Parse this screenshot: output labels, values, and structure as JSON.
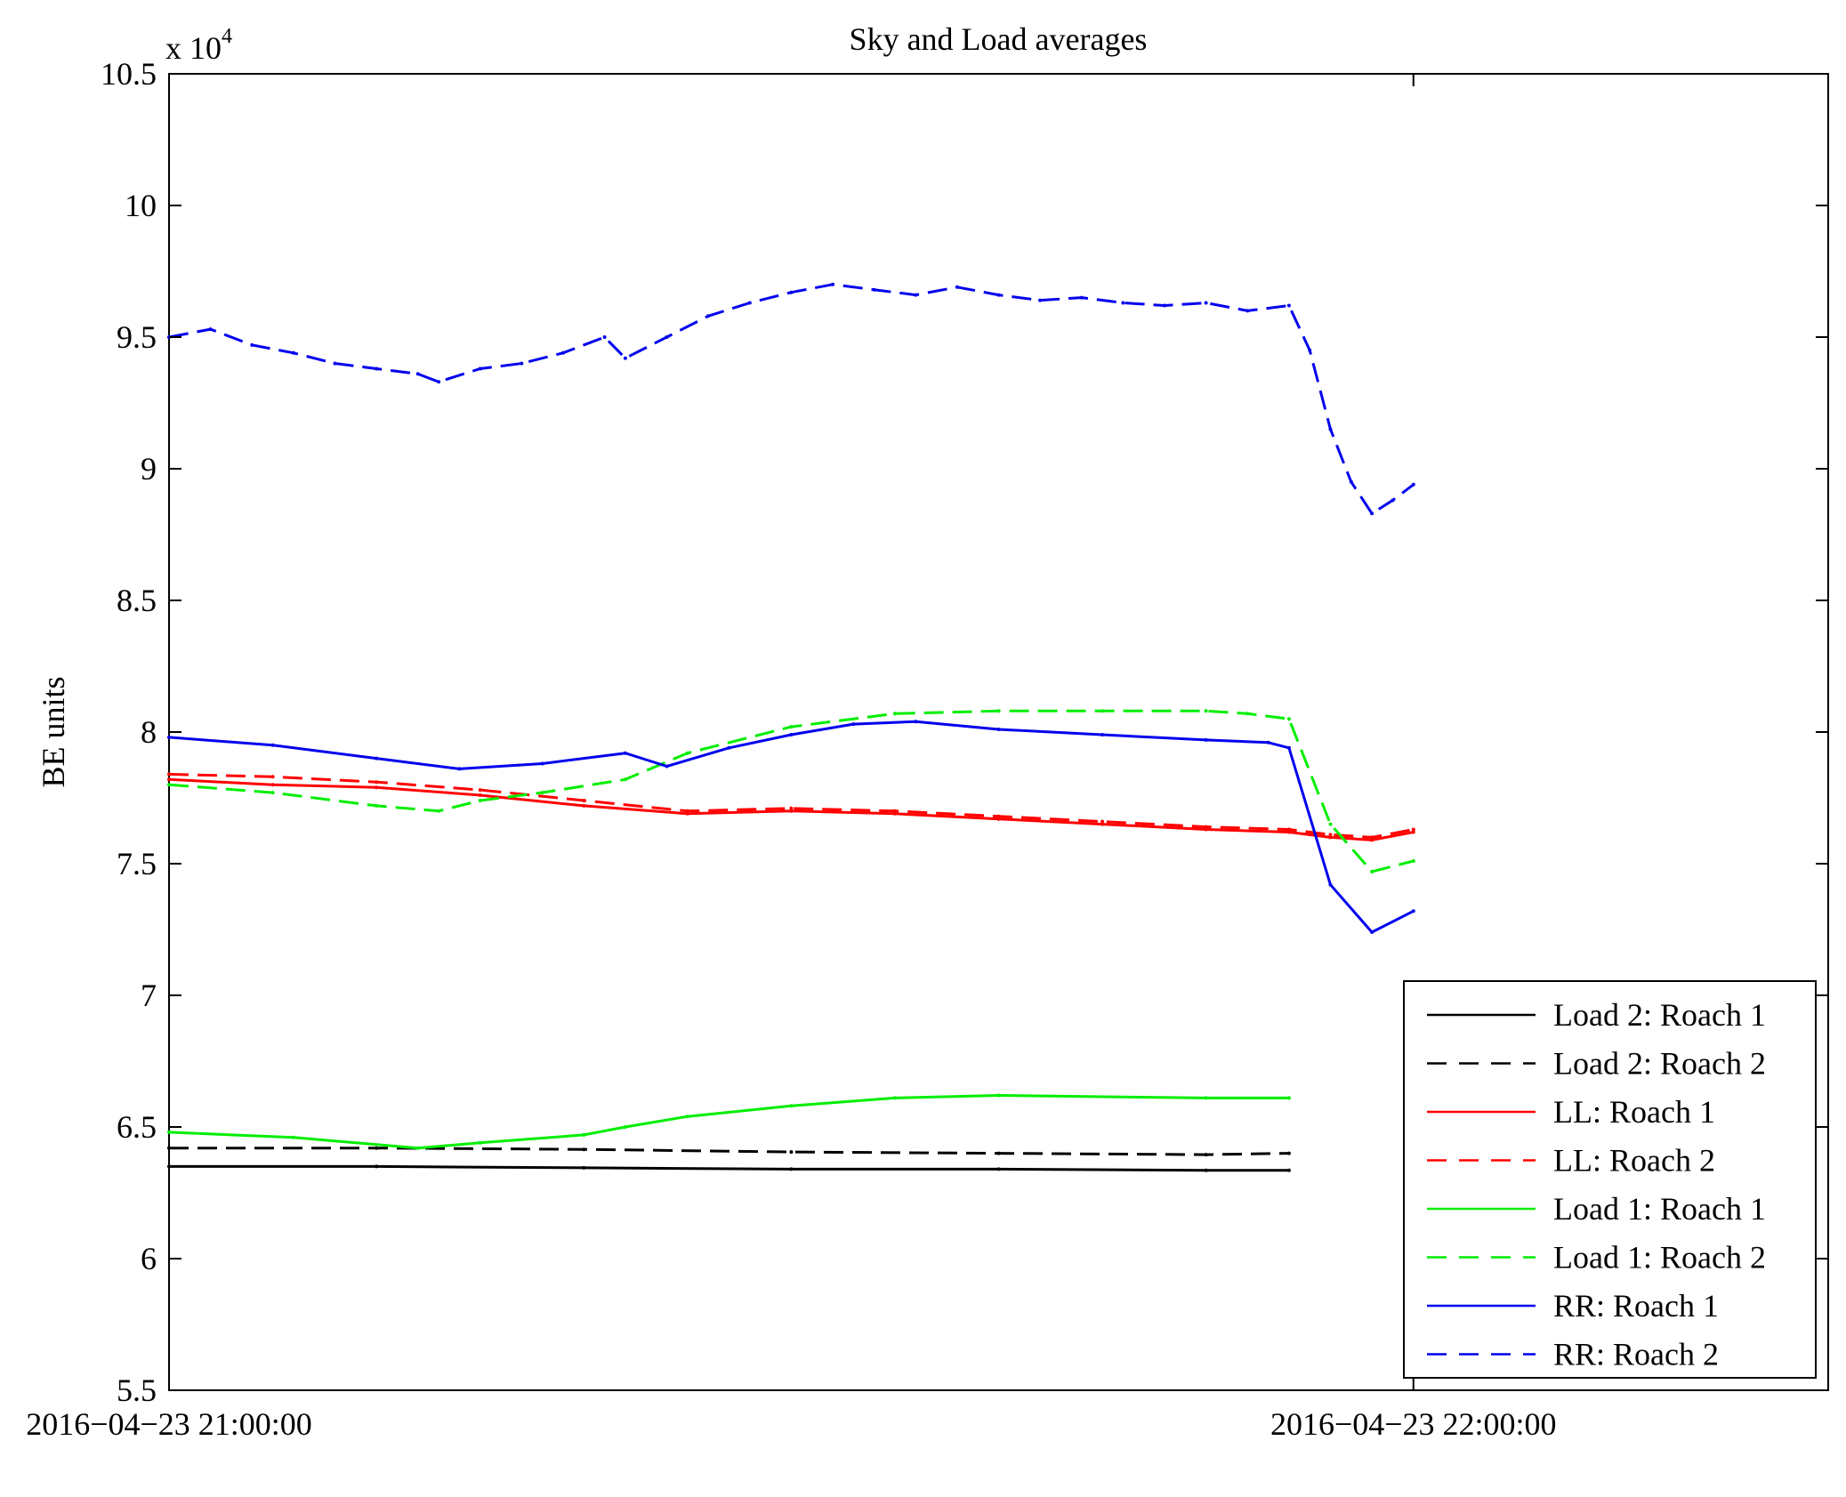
{
  "chart_data": {
    "type": "line",
    "title": "Sky and Load averages",
    "xlabel": "",
    "ylabel": "BE units",
    "y_multiplier_label": "x 10",
    "y_multiplier_exponent": "4",
    "xlim_minutes": [
      0,
      80
    ],
    "ylim": [
      55000,
      105000
    ],
    "x_ticks": [
      {
        "minutes": 0,
        "label": "2016−04−23 21:00:00"
      },
      {
        "minutes": 60,
        "label": "2016−04−23 22:00:00"
      }
    ],
    "y_ticks": [
      {
        "value": 55000,
        "label": "5.5"
      },
      {
        "value": 60000,
        "label": "6"
      },
      {
        "value": 65000,
        "label": "6.5"
      },
      {
        "value": 70000,
        "label": "7"
      },
      {
        "value": 75000,
        "label": "7.5"
      },
      {
        "value": 80000,
        "label": "8"
      },
      {
        "value": 85000,
        "label": "8.5"
      },
      {
        "value": 90000,
        "label": "9"
      },
      {
        "value": 95000,
        "label": "9.5"
      },
      {
        "value": 100000,
        "label": "10"
      },
      {
        "value": 105000,
        "label": "10.5"
      }
    ],
    "grid": false,
    "legend_position": "bottom-right",
    "series": [
      {
        "name": "Load 2: Roach 1",
        "color": "#000000",
        "dash": "solid",
        "points": [
          [
            0,
            63500
          ],
          [
            10,
            63500
          ],
          [
            20,
            63450
          ],
          [
            30,
            63400
          ],
          [
            40,
            63400
          ],
          [
            50,
            63350
          ],
          [
            54,
            63350
          ]
        ]
      },
      {
        "name": "Load 2: Roach 2",
        "color": "#000000",
        "dash": "dashed",
        "points": [
          [
            0,
            64200
          ],
          [
            10,
            64200
          ],
          [
            20,
            64150
          ],
          [
            30,
            64050
          ],
          [
            40,
            64000
          ],
          [
            50,
            63950
          ],
          [
            54,
            64000
          ]
        ]
      },
      {
        "name": "LL: Roach 1",
        "color": "#ff0000",
        "dash": "solid",
        "points": [
          [
            0,
            78200
          ],
          [
            5,
            78000
          ],
          [
            10,
            77900
          ],
          [
            15,
            77600
          ],
          [
            20,
            77200
          ],
          [
            25,
            76900
          ],
          [
            30,
            77000
          ],
          [
            35,
            76900
          ],
          [
            40,
            76700
          ],
          [
            45,
            76500
          ],
          [
            50,
            76300
          ],
          [
            54,
            76200
          ],
          [
            56,
            76000
          ],
          [
            58,
            75900
          ],
          [
            60,
            76200
          ]
        ]
      },
      {
        "name": "LL: Roach 2",
        "color": "#ff0000",
        "dash": "dashed",
        "points": [
          [
            0,
            78400
          ],
          [
            5,
            78300
          ],
          [
            10,
            78100
          ],
          [
            15,
            77800
          ],
          [
            20,
            77400
          ],
          [
            25,
            77000
          ],
          [
            30,
            77100
          ],
          [
            35,
            77000
          ],
          [
            40,
            76800
          ],
          [
            45,
            76600
          ],
          [
            50,
            76400
          ],
          [
            54,
            76300
          ],
          [
            56,
            76100
          ],
          [
            58,
            76000
          ],
          [
            60,
            76300
          ]
        ]
      },
      {
        "name": "Load 1: Roach 1",
        "color": "#00ee00",
        "dash": "solid",
        "points": [
          [
            0,
            64800
          ],
          [
            6,
            64600
          ],
          [
            12,
            64200
          ],
          [
            15,
            64400
          ],
          [
            20,
            64700
          ],
          [
            22,
            65000
          ],
          [
            25,
            65400
          ],
          [
            30,
            65800
          ],
          [
            35,
            66100
          ],
          [
            40,
            66200
          ],
          [
            50,
            66100
          ],
          [
            54,
            66100
          ]
        ]
      },
      {
        "name": "Load 1: Roach 2",
        "color": "#00ee00",
        "dash": "dashed",
        "points": [
          [
            0,
            78000
          ],
          [
            5,
            77700
          ],
          [
            10,
            77200
          ],
          [
            13,
            77000
          ],
          [
            15,
            77400
          ],
          [
            18,
            77700
          ],
          [
            22,
            78200
          ],
          [
            25,
            79200
          ],
          [
            30,
            80200
          ],
          [
            35,
            80700
          ],
          [
            40,
            80800
          ],
          [
            45,
            80800
          ],
          [
            50,
            80800
          ],
          [
            52,
            80700
          ],
          [
            54,
            80500
          ],
          [
            56,
            76500
          ],
          [
            58,
            74700
          ],
          [
            60,
            75100
          ]
        ]
      },
      {
        "name": "RR: Roach 1",
        "color": "#0000ee",
        "dash": "solid",
        "points": [
          [
            0,
            79800
          ],
          [
            5,
            79500
          ],
          [
            10,
            79000
          ],
          [
            14,
            78600
          ],
          [
            18,
            78800
          ],
          [
            22,
            79200
          ],
          [
            24,
            78700
          ],
          [
            27,
            79400
          ],
          [
            30,
            79900
          ],
          [
            33,
            80300
          ],
          [
            36,
            80400
          ],
          [
            40,
            80100
          ],
          [
            45,
            79900
          ],
          [
            50,
            79700
          ],
          [
            53,
            79600
          ],
          [
            54,
            79400
          ],
          [
            56,
            74200
          ],
          [
            58,
            72400
          ],
          [
            60,
            73200
          ]
        ]
      },
      {
        "name": "RR: Roach 2",
        "color": "#0000ee",
        "dash": "dashed",
        "points": [
          [
            0,
            95000
          ],
          [
            2,
            95300
          ],
          [
            4,
            94700
          ],
          [
            6,
            94400
          ],
          [
            8,
            94000
          ],
          [
            10,
            93800
          ],
          [
            12,
            93600
          ],
          [
            13,
            93300
          ],
          [
            15,
            93800
          ],
          [
            17,
            94000
          ],
          [
            19,
            94400
          ],
          [
            21,
            95000
          ],
          [
            22,
            94200
          ],
          [
            24,
            95000
          ],
          [
            26,
            95800
          ],
          [
            28,
            96300
          ],
          [
            30,
            96700
          ],
          [
            32,
            97000
          ],
          [
            34,
            96800
          ],
          [
            36,
            96600
          ],
          [
            38,
            96900
          ],
          [
            40,
            96600
          ],
          [
            42,
            96400
          ],
          [
            44,
            96500
          ],
          [
            46,
            96300
          ],
          [
            48,
            96200
          ],
          [
            50,
            96300
          ],
          [
            52,
            96000
          ],
          [
            54,
            96200
          ],
          [
            55,
            94500
          ],
          [
            56,
            91500
          ],
          [
            57,
            89500
          ],
          [
            58,
            88300
          ],
          [
            59,
            88800
          ],
          [
            60,
            89400
          ]
        ]
      }
    ]
  }
}
